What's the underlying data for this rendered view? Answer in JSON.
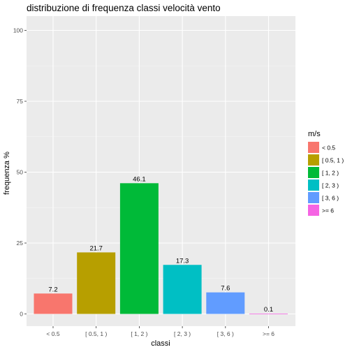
{
  "chart_data": {
    "type": "bar",
    "title": "distribuzione di frequenza classi velocità vento",
    "xlabel": "classi",
    "ylabel": "frequenza %",
    "categories": [
      "< 0.5",
      "[ 0.5, 1 )",
      "[ 1, 2 )",
      "[ 2, 3 )",
      "[ 3, 6 )",
      ">= 6"
    ],
    "values": [
      7.2,
      21.7,
      46.1,
      17.3,
      7.6,
      0.1
    ],
    "value_labels": [
      "7.2",
      "21.7",
      "46.1",
      "17.3",
      "7.6",
      "0.1"
    ],
    "colors": [
      "#F8766D",
      "#B79F00",
      "#00BA38",
      "#00BFC4",
      "#619CFF",
      "#F564E3"
    ],
    "ylim": [
      0,
      100
    ],
    "yticks": [
      0,
      25,
      50,
      75,
      100
    ],
    "ytick_labels": [
      "0",
      "25",
      "50",
      "75",
      "100"
    ],
    "grid": true,
    "panel_background": "#EBEBEB",
    "legend": {
      "title": "m/s",
      "position": "right",
      "labels": [
        "< 0.5",
        "[ 0.5, 1 )",
        "[ 1, 2 )",
        "[ 2, 3 )",
        "[ 3, 6 )",
        ">= 6"
      ]
    }
  }
}
